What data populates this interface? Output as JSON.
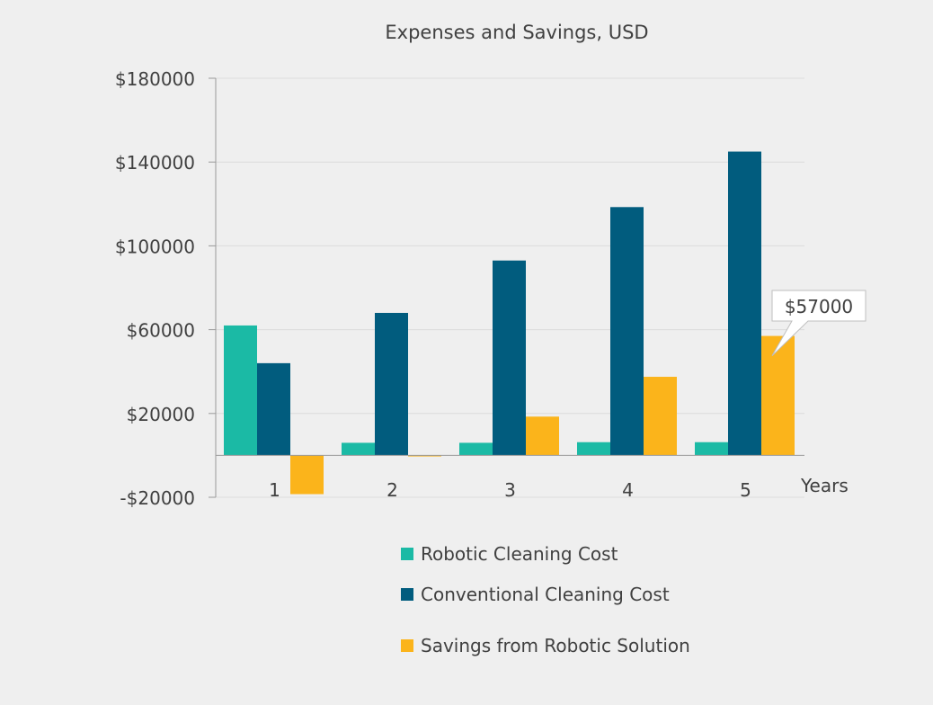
{
  "chart_data": {
    "type": "bar",
    "title": "Expenses and Savings, USD",
    "xlabel": "Years",
    "ylabel": "",
    "categories": [
      "1",
      "2",
      "3",
      "4",
      "5"
    ],
    "ylim": [
      -20000,
      180000
    ],
    "yticks": [
      -20000,
      20000,
      60000,
      100000,
      140000,
      180000
    ],
    "ytick_labels": [
      "-$20000",
      "$20000",
      "$60000",
      "$100000",
      "$140000",
      "$180000"
    ],
    "grid": true,
    "legend_position": "bottom",
    "series": [
      {
        "name": "Robotic Cleaning Cost",
        "color": "#1bbaa5",
        "values": [
          62000,
          6000,
          6000,
          6300,
          6300
        ]
      },
      {
        "name": "Conventional Cleaning Cost",
        "color": "#015c7e",
        "values": [
          44000,
          68000,
          93000,
          118500,
          145000
        ]
      },
      {
        "name": "Savings from Robotic Solution",
        "color": "#fbb41b",
        "values": [
          -18500,
          -500,
          18500,
          37500,
          57000
        ]
      }
    ],
    "annotations": [
      {
        "text": "$57000",
        "series": 2,
        "category": 4
      }
    ]
  }
}
